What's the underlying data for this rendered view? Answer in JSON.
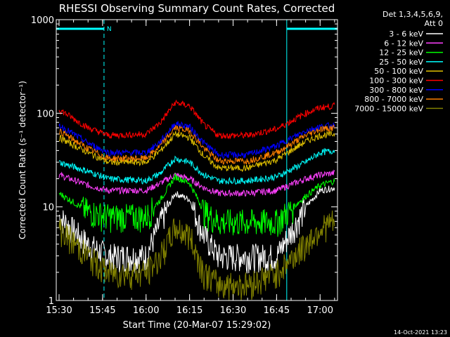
{
  "chart_data": {
    "type": "line",
    "title": "RHESSI Observing Summary Count Rates, Corrected",
    "xlabel": "Start Time (20-Mar-07 15:29:02)",
    "ylabel": "Corrected Count Rate (s⁻¹ detector⁻¹)",
    "y_scale": "log",
    "ylim": [
      1,
      1000
    ],
    "xlim": [
      "15:29:02",
      "17:06:00"
    ],
    "x_ticks": [
      "15:30",
      "15:45",
      "16:00",
      "16:15",
      "16:30",
      "16:45",
      "17:00"
    ],
    "y_ticks": [
      "1",
      "10",
      "100",
      "1000"
    ],
    "legend_header": [
      "Det 1,3,4,5,6,9,",
      "Att 0"
    ],
    "legend_position": "right",
    "annotations": {
      "night_bars": [
        {
          "start": "15:29:02",
          "end": "15:45:30",
          "label": "N"
        },
        {
          "start": "16:48:30",
          "end": "17:06:00",
          "label": ""
        }
      ],
      "vertical_lines": [
        {
          "time": "15:29:02",
          "style": "solid"
        },
        {
          "time": "15:45:30",
          "style": "dashed"
        },
        {
          "time": "16:48:30",
          "style": "solid"
        },
        {
          "time": "17:06:00",
          "style": "dashed"
        }
      ]
    },
    "x": [
      "15:30",
      "15:40",
      "15:47",
      "16:00",
      "16:05",
      "16:10",
      "16:15",
      "16:20",
      "16:25",
      "16:35",
      "16:45",
      "16:55",
      "17:00",
      "17:05"
    ],
    "series": [
      {
        "name": "3 - 6 keV",
        "color": "#ffffff",
        "values": [
          8,
          4,
          3,
          3,
          7,
          14,
          12,
          5,
          3,
          3,
          3,
          10,
          15,
          16
        ]
      },
      {
        "name": "6 - 12 keV",
        "color": "#ff40ff",
        "values": [
          22,
          17,
          15,
          15,
          18,
          22,
          20,
          16,
          14,
          14,
          15,
          20,
          22,
          23
        ]
      },
      {
        "name": "12 - 25 keV",
        "color": "#00ff00",
        "values": [
          14,
          9,
          8,
          8,
          12,
          21,
          18,
          9,
          7,
          7,
          7,
          13,
          17,
          19
        ]
      },
      {
        "name": "25 - 50 keV",
        "color": "#00ffff",
        "values": [
          30,
          24,
          20,
          19,
          23,
          33,
          30,
          22,
          19,
          19,
          21,
          30,
          38,
          40
        ]
      },
      {
        "name": "50 - 100 keV",
        "color": "#e0c000",
        "values": [
          55,
          38,
          30,
          30,
          40,
          60,
          55,
          35,
          26,
          26,
          32,
          50,
          58,
          60
        ]
      },
      {
        "name": "100 - 300 keV",
        "color": "#ff0000",
        "values": [
          110,
          70,
          58,
          60,
          80,
          130,
          120,
          75,
          58,
          58,
          68,
          100,
          115,
          120
        ]
      },
      {
        "name": "300 - 800 keV",
        "color": "#0000ff",
        "values": [
          75,
          48,
          38,
          38,
          50,
          78,
          72,
          48,
          36,
          36,
          45,
          65,
          72,
          75
        ]
      },
      {
        "name": "800 - 7000 keV",
        "color": "#ff8000",
        "values": [
          65,
          42,
          33,
          33,
          45,
          70,
          65,
          42,
          31,
          31,
          38,
          58,
          68,
          70
        ]
      },
      {
        "name": "7000 - 15000 keV",
        "color": "#808000",
        "values": [
          6,
          3,
          2,
          2,
          3,
          6,
          5,
          2,
          1.5,
          1.5,
          2,
          4,
          6,
          7
        ]
      }
    ]
  },
  "footer": {
    "timestamp": "14-Oct-2021 13:23"
  }
}
